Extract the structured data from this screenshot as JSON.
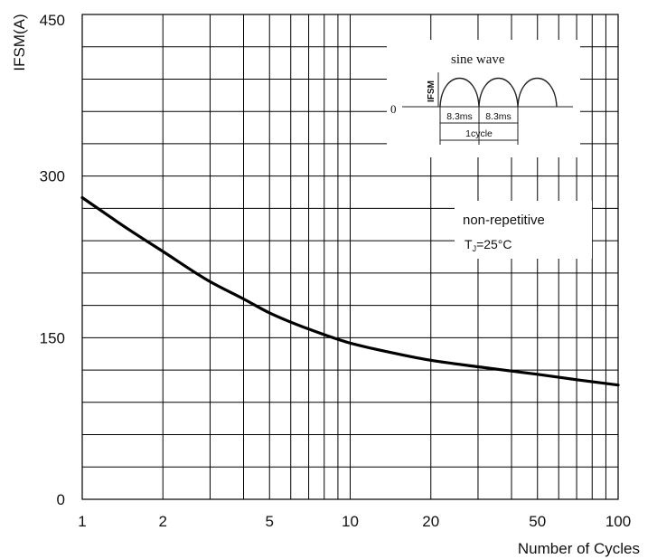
{
  "chart_data": {
    "type": "line",
    "title": "",
    "xlabel": "Number of Cycles",
    "ylabel": "IFSM(A)",
    "xscale": "log",
    "xlim": [
      1,
      100
    ],
    "ylim": [
      0,
      450
    ],
    "grid": true,
    "x_ticks": [
      {
        "value": 1,
        "label": "1"
      },
      {
        "value": 2,
        "label": "2"
      },
      {
        "value": 5,
        "label": "5"
      },
      {
        "value": 10,
        "label": "10"
      },
      {
        "value": 20,
        "label": "20"
      },
      {
        "value": 50,
        "label": "50"
      },
      {
        "value": 100,
        "label": "100"
      }
    ],
    "y_ticks": [
      {
        "value": 0,
        "label": "0"
      },
      {
        "value": 150,
        "label": "150"
      },
      {
        "value": 300,
        "label": "300"
      },
      {
        "value": 450,
        "label": "450"
      }
    ],
    "y_minor_step": 30,
    "series": [
      {
        "color": "#000000",
        "x": [
          1,
          1.5,
          2,
          3,
          4,
          5,
          7,
          10,
          15,
          20,
          30,
          50,
          70,
          100
        ],
        "y": [
          280,
          250,
          230,
          202,
          186,
          173,
          158,
          145,
          135,
          129,
          123,
          116,
          111,
          106
        ]
      }
    ],
    "annotations": {
      "condition_line1": "non-repetitive",
      "condition_tj_main": "T",
      "condition_tj_sub": "J",
      "condition_tj_value": "=25°C"
    },
    "inset": {
      "title": "sine wave",
      "ylabel": "IFSM",
      "zero_label": "0",
      "half_period_1": "8.3ms",
      "half_period_2": "8.3ms",
      "cycle_label": "1cycle"
    }
  }
}
